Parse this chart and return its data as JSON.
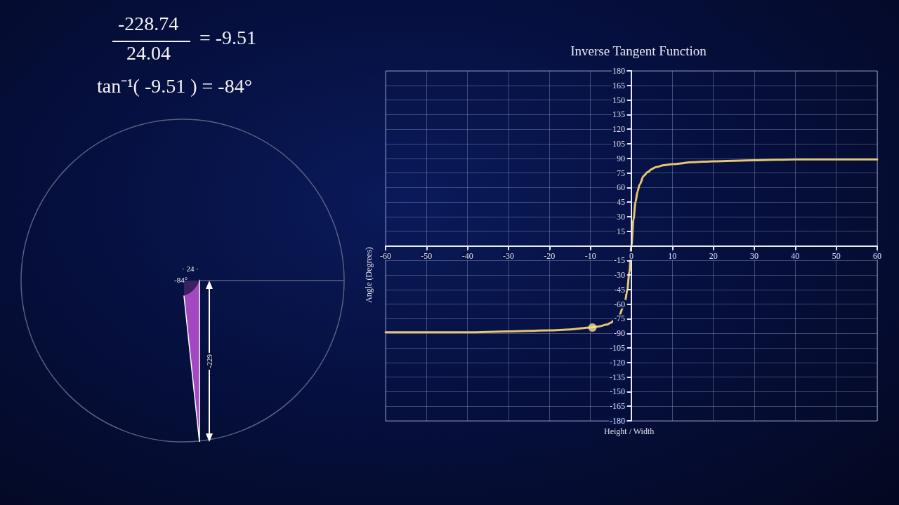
{
  "chart_data": {
    "type": "line",
    "title": "Inverse Tangent Function",
    "xlabel": "Height / Width",
    "ylabel": "Angle (Degrees)",
    "xlim": [
      -60,
      60
    ],
    "xticks": [
      -60,
      -50,
      -40,
      -30,
      -20,
      -10,
      0,
      10,
      20,
      30,
      40,
      50,
      60
    ],
    "ylim": [
      -180,
      180
    ],
    "yticks": [
      -180,
      -165,
      -150,
      -135,
      -120,
      -105,
      -90,
      -75,
      -60,
      -45,
      -30,
      -15,
      {
        "value": 0,
        "label": null
      },
      15,
      30,
      45,
      60,
      75,
      90,
      105,
      120,
      135,
      150,
      165,
      180
    ],
    "grid": true,
    "series": [
      {
        "color": "#e6c66e",
        "marker": "none",
        "x": [
          -60,
          -50,
          -40,
          -30,
          -20,
          -15,
          -10,
          -8,
          -6,
          -5,
          -4,
          -3,
          -2,
          -1.5,
          -1,
          -0.5,
          0,
          0.5,
          1,
          1.5,
          2,
          3,
          4,
          5,
          6,
          8,
          10,
          15,
          20,
          30,
          40,
          50,
          60
        ],
        "values": [
          -89,
          -89,
          -89,
          -88,
          -87,
          -86,
          -84,
          -83,
          -81,
          -79,
          -76,
          -72,
          -63,
          -56,
          -45,
          -27,
          0,
          27,
          45,
          56,
          63,
          72,
          76,
          79,
          81,
          83,
          84,
          86,
          87,
          88,
          89,
          89,
          89
        ]
      },
      {
        "type": "scatter",
        "color": "#f7e394",
        "marker": "circle",
        "x": [
          -9.51
        ],
        "values": [
          -84
        ]
      }
    ],
    "annotations": [
      "-228.74",
      "24.04",
      "= -9.51",
      "tan⁻¹( -9.51 ) = -84°",
      "· 24 ·",
      "-84°",
      "-229"
    ]
  }
}
